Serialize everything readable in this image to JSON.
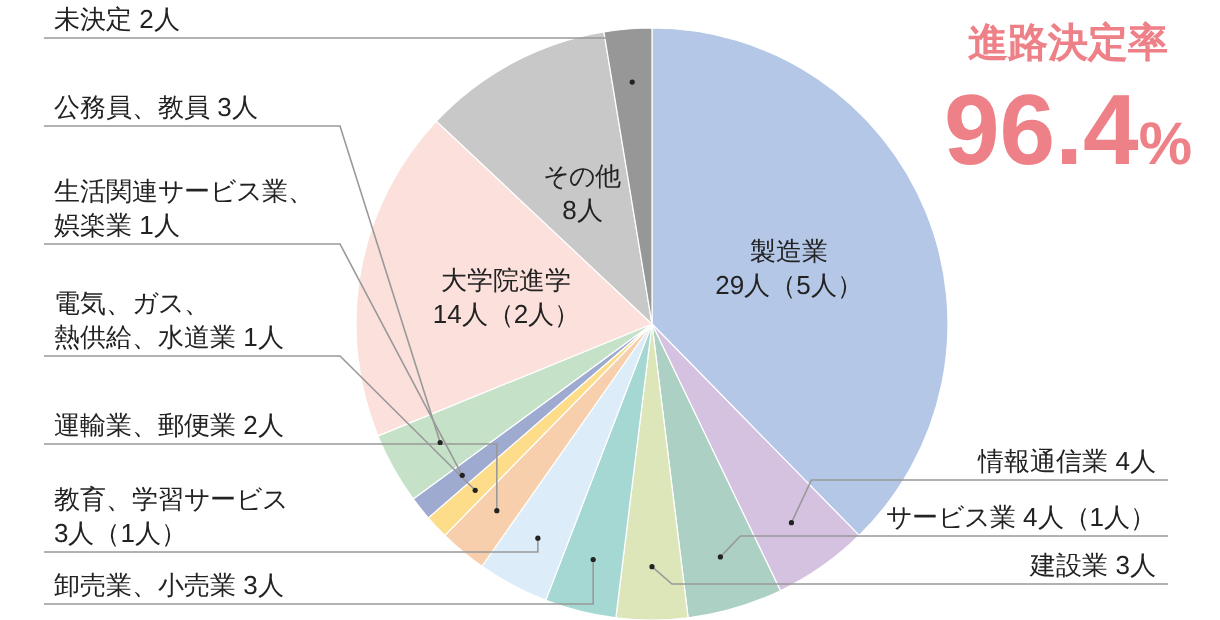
{
  "chart_data": {
    "type": "pie",
    "title": "進路決定率",
    "annotations": [
      "96.4%"
    ],
    "categories": [
      "製造業",
      "情報通信業",
      "サービス業",
      "建設業",
      "卸売業、小売業",
      "教育、学習サービス",
      "運輸業、郵便業",
      "電気、ガス、熱供給、水道業",
      "生活関連サービス業、娯楽業",
      "公務員、教員",
      "大学院進学",
      "その他",
      "未決定"
    ],
    "values": [
      29,
      4,
      4,
      3,
      3,
      3,
      2,
      1,
      1,
      3,
      14,
      8,
      2
    ],
    "value_labels": [
      "29人（5人）",
      "4人",
      "4人（1人）",
      "3人",
      "3人",
      "3人（1人）",
      "2人",
      "1人",
      "1人",
      "3人",
      "14人（2人）",
      "8人",
      "2人"
    ],
    "colors": [
      "#b4c7e7",
      "#d5c2e0",
      "#acd0c3",
      "#dce6b8",
      "#a6d8d3",
      "#dcecf8",
      "#f8cfac",
      "#fddc8a",
      "#9eaad0",
      "#c5e2c8",
      "#fbe0dc",
      "#c8c8c8",
      "#979797"
    ]
  }
}
